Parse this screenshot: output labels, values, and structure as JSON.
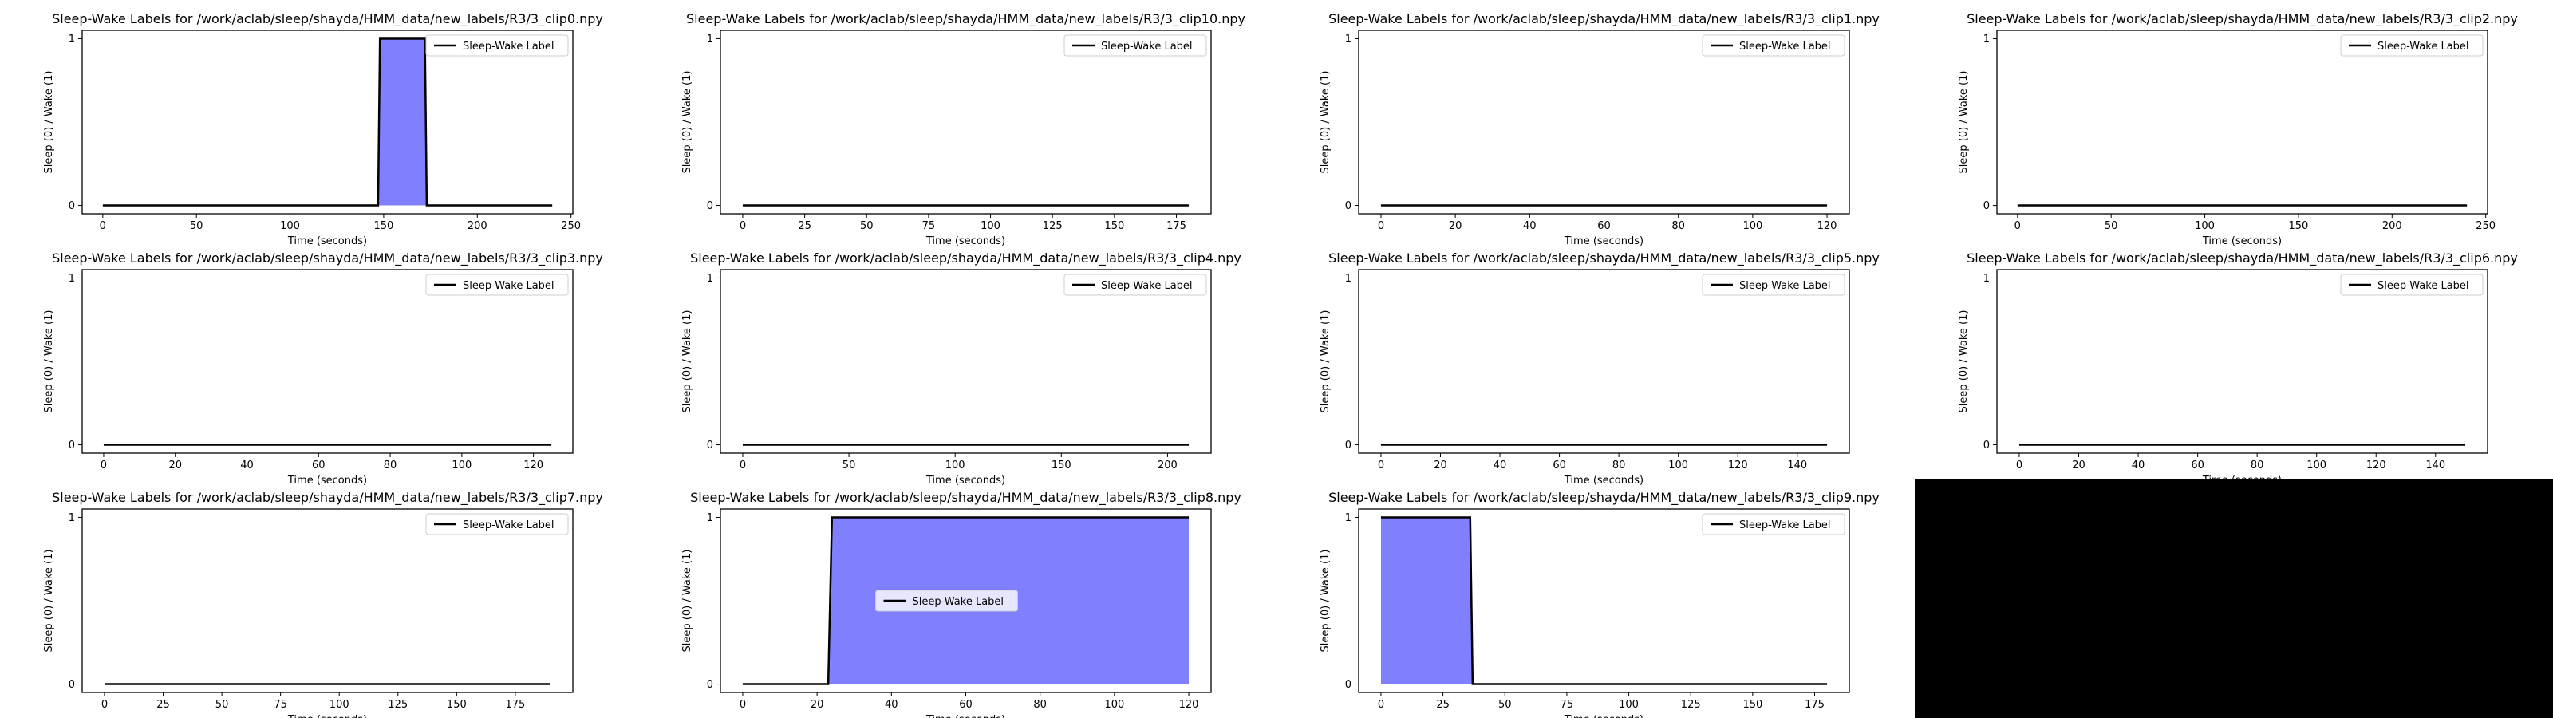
{
  "colors": {
    "line": "#000000",
    "fill": "#8080ff",
    "axes": "#000000",
    "background": "#ffffff",
    "empty_panel": "#000000"
  },
  "chart_data": [
    {
      "type": "area",
      "title": "Sleep-Wake Labels for /work/aclab/sleep/shayda/HMM_data/new_labels/R3/3_clip0.npy",
      "xlabel": "Time (seconds)",
      "ylabel": "Sleep (0) / Wake (1)",
      "xlim": [
        -11,
        251
      ],
      "ylim": [
        -0.05,
        1.05
      ],
      "xticks": [
        0,
        50,
        100,
        150,
        200,
        250
      ],
      "yticks": [
        0,
        1
      ],
      "legend": "upper right",
      "series": [
        {
          "name": "Sleep-Wake Label",
          "x": [
            0,
            147,
            148,
            172,
            173,
            240
          ],
          "y": [
            0,
            0,
            1,
            1,
            0,
            0
          ]
        }
      ]
    },
    {
      "type": "area",
      "title": "Sleep-Wake Labels for /work/aclab/sleep/shayda/HMM_data/new_labels/R3/3_clip10.npy",
      "xlabel": "Time (seconds)",
      "ylabel": "Sleep (0) / Wake (1)",
      "xlim": [
        -9,
        189
      ],
      "ylim": [
        -0.05,
        1.05
      ],
      "xticks": [
        0,
        25,
        50,
        75,
        100,
        125,
        150,
        175
      ],
      "yticks": [
        0,
        1
      ],
      "legend": "upper right",
      "series": [
        {
          "name": "Sleep-Wake Label",
          "x": [
            0,
            180
          ],
          "y": [
            0,
            0
          ]
        }
      ]
    },
    {
      "type": "area",
      "title": "Sleep-Wake Labels for /work/aclab/sleep/shayda/HMM_data/new_labels/R3/3_clip1.npy",
      "xlabel": "Time (seconds)",
      "ylabel": "Sleep (0) / Wake (1)",
      "xlim": [
        -6,
        126
      ],
      "ylim": [
        -0.05,
        1.05
      ],
      "xticks": [
        0,
        20,
        40,
        60,
        80,
        100,
        120
      ],
      "yticks": [
        0,
        1
      ],
      "legend": "upper right",
      "series": [
        {
          "name": "Sleep-Wake Label",
          "x": [
            0,
            120
          ],
          "y": [
            0,
            0
          ]
        }
      ]
    },
    {
      "type": "area",
      "title": "Sleep-Wake Labels for /work/aclab/sleep/shayda/HMM_data/new_labels/R3/3_clip2.npy",
      "xlabel": "Time (seconds)",
      "ylabel": "Sleep (0) / Wake (1)",
      "xlim": [
        -11,
        251
      ],
      "ylim": [
        -0.05,
        1.05
      ],
      "xticks": [
        0,
        50,
        100,
        150,
        200,
        250
      ],
      "yticks": [
        0,
        1
      ],
      "legend": "upper right",
      "series": [
        {
          "name": "Sleep-Wake Label",
          "x": [
            0,
            240
          ],
          "y": [
            0,
            0
          ]
        }
      ]
    },
    {
      "type": "area",
      "title": "Sleep-Wake Labels for /work/aclab/sleep/shayda/HMM_data/new_labels/R3/3_clip3.npy",
      "xlabel": "Time (seconds)",
      "ylabel": "Sleep (0) / Wake (1)",
      "xlim": [
        -6,
        131
      ],
      "ylim": [
        -0.05,
        1.05
      ],
      "xticks": [
        0,
        20,
        40,
        60,
        80,
        100,
        120
      ],
      "yticks": [
        0,
        1
      ],
      "legend": "upper right",
      "series": [
        {
          "name": "Sleep-Wake Label",
          "x": [
            0,
            125
          ],
          "y": [
            0,
            0
          ]
        }
      ]
    },
    {
      "type": "area",
      "title": "Sleep-Wake Labels for /work/aclab/sleep/shayda/HMM_data/new_labels/R3/3_clip4.npy",
      "xlabel": "Time (seconds)",
      "ylabel": "Sleep (0) / Wake (1)",
      "xlim": [
        -10.5,
        220.5
      ],
      "ylim": [
        -0.05,
        1.05
      ],
      "xticks": [
        0,
        50,
        100,
        150,
        200
      ],
      "yticks": [
        0,
        1
      ],
      "legend": "upper right",
      "series": [
        {
          "name": "Sleep-Wake Label",
          "x": [
            0,
            210
          ],
          "y": [
            0,
            0
          ]
        }
      ]
    },
    {
      "type": "area",
      "title": "Sleep-Wake Labels for /work/aclab/sleep/shayda/HMM_data/new_labels/R3/3_clip5.npy",
      "xlabel": "Time (seconds)",
      "ylabel": "Sleep (0) / Wake (1)",
      "xlim": [
        -7.5,
        157.5
      ],
      "ylim": [
        -0.05,
        1.05
      ],
      "xticks": [
        0,
        20,
        40,
        60,
        80,
        100,
        120,
        140
      ],
      "yticks": [
        0,
        1
      ],
      "legend": "upper right",
      "series": [
        {
          "name": "Sleep-Wake Label",
          "x": [
            0,
            150
          ],
          "y": [
            0,
            0
          ]
        }
      ]
    },
    {
      "type": "area",
      "title": "Sleep-Wake Labels for /work/aclab/sleep/shayda/HMM_data/new_labels/R3/3_clip6.npy",
      "xlabel": "Time (seconds)",
      "ylabel": "Sleep (0) / Wake (1)",
      "xlim": [
        -7.5,
        157.5
      ],
      "ylim": [
        -0.05,
        1.05
      ],
      "xticks": [
        0,
        20,
        40,
        60,
        80,
        100,
        120,
        140
      ],
      "yticks": [
        0,
        1
      ],
      "legend": "upper right",
      "series": [
        {
          "name": "Sleep-Wake Label",
          "x": [
            0,
            150
          ],
          "y": [
            0,
            0
          ]
        }
      ]
    },
    {
      "type": "area",
      "title": "Sleep-Wake Labels for /work/aclab/sleep/shayda/HMM_data/new_labels/R3/3_clip7.npy",
      "xlabel": "Time (seconds)",
      "ylabel": "Sleep (0) / Wake (1)",
      "xlim": [
        -9.5,
        199.5
      ],
      "ylim": [
        -0.05,
        1.05
      ],
      "xticks": [
        0,
        25,
        50,
        75,
        100,
        125,
        150,
        175
      ],
      "yticks": [
        0,
        1
      ],
      "legend": "upper right",
      "series": [
        {
          "name": "Sleep-Wake Label",
          "x": [
            0,
            190
          ],
          "y": [
            0,
            0
          ]
        }
      ]
    },
    {
      "type": "area",
      "title": "Sleep-Wake Labels for /work/aclab/sleep/shayda/HMM_data/new_labels/R3/3_clip8.npy",
      "xlabel": "Time (seconds)",
      "ylabel": "Sleep (0) / Wake (1)",
      "xlim": [
        -6,
        126
      ],
      "ylim": [
        -0.05,
        1.05
      ],
      "xticks": [
        0,
        20,
        40,
        60,
        80,
        100,
        120
      ],
      "yticks": [
        0,
        1
      ],
      "legend": "center",
      "series": [
        {
          "name": "Sleep-Wake Label",
          "x": [
            0,
            23,
            24,
            120
          ],
          "y": [
            0,
            0,
            1,
            1
          ]
        }
      ]
    },
    {
      "type": "area",
      "title": "Sleep-Wake Labels for /work/aclab/sleep/shayda/HMM_data/new_labels/R3/3_clip9.npy",
      "xlabel": "Time (seconds)",
      "ylabel": "Sleep (0) / Wake (1)",
      "xlim": [
        -9,
        189
      ],
      "ylim": [
        -0.05,
        1.05
      ],
      "xticks": [
        0,
        25,
        50,
        75,
        100,
        125,
        150,
        175
      ],
      "yticks": [
        0,
        1
      ],
      "legend": "upper right",
      "series": [
        {
          "name": "Sleep-Wake Label",
          "x": [
            0,
            36,
            37,
            180
          ],
          "y": [
            1,
            1,
            0,
            0
          ]
        }
      ]
    }
  ]
}
